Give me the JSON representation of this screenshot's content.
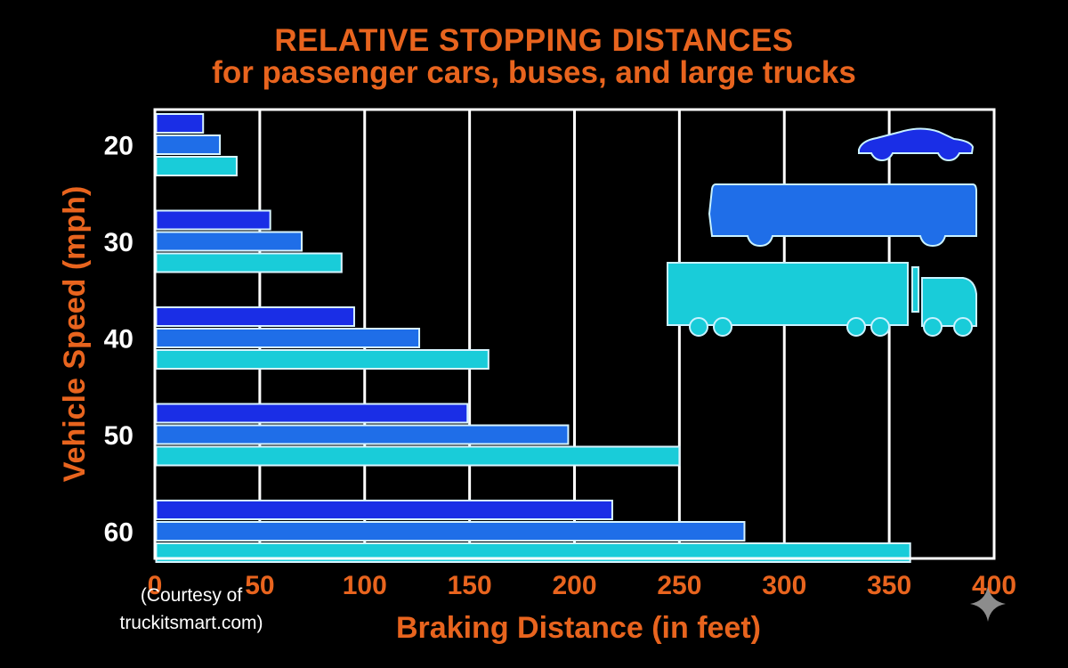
{
  "chart_data": {
    "type": "bar",
    "orientation": "horizontal",
    "title": "RELATIVE STOPPING DISTANCES",
    "subtitle": "for passenger cars, buses, and large trucks",
    "xlabel": "Braking Distance (in feet)",
    "ylabel": "Vehicle Speed (mph)",
    "xlim": [
      0,
      400
    ],
    "xticks": [
      "0",
      "50",
      "100",
      "150",
      "200",
      "250",
      "300",
      "350",
      "400"
    ],
    "categories": [
      "20",
      "30",
      "40",
      "50",
      "60"
    ],
    "grid": true,
    "legend": "pictorial vehicle icons, top-right",
    "series": [
      {
        "icon": "car-icon",
        "color": "#1a2ee6",
        "values": [
          23,
          55,
          95,
          149,
          218
        ]
      },
      {
        "icon": "bus-icon",
        "color": "#1f6ee8",
        "values": [
          31,
          70,
          126,
          197,
          281
        ]
      },
      {
        "icon": "truck-icon",
        "color": "#19ccd9",
        "values": [
          39,
          89,
          159,
          250,
          360
        ]
      }
    ]
  },
  "credit": {
    "line1": "(Courtesy of",
    "line2": "truckitsmart.com)"
  },
  "colors": {
    "title": "#e8641e",
    "axis": "#ffffff",
    "background": "#000000"
  }
}
